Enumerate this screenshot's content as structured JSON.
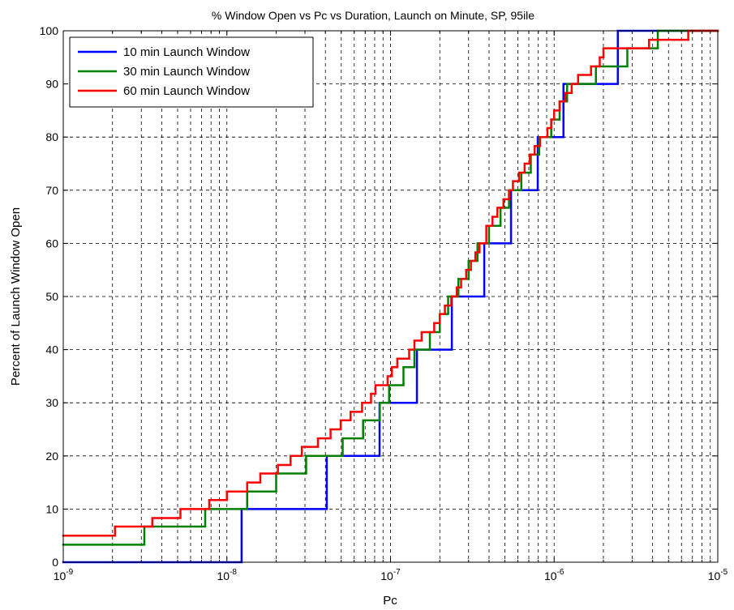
{
  "chart_data": {
    "type": "step",
    "title": "% Window Open vs Pc vs Duration, Launch on Minute, SP, 95ile",
    "xlabel": "Pc",
    "ylabel": "Percent of Launch Window Open",
    "xscale": "log",
    "xlim": [
      1e-09,
      1e-05
    ],
    "xticks": [
      {
        "value": 1e-09,
        "label": "10-9"
      },
      {
        "value": 1e-08,
        "label": "10-8"
      },
      {
        "value": 1e-07,
        "label": "10-7"
      },
      {
        "value": 1e-06,
        "label": "10-6"
      },
      {
        "value": 1e-05,
        "label": "10-5"
      }
    ],
    "ylim": [
      0,
      100
    ],
    "yticks": [
      0,
      10,
      20,
      30,
      40,
      50,
      60,
      70,
      80,
      90,
      100
    ],
    "grid": true,
    "minor_grid": true,
    "legend": "upper left",
    "series": [
      {
        "name": "10 min Launch Window",
        "color": "#0000ff",
        "x": [
          1e-09,
          1.23e-08,
          4.08e-08,
          8.57e-08,
          1.45e-07,
          2.37e-07,
          3.74e-07,
          5.45e-07,
          7.94e-07,
          1.14e-06,
          2.45e-06
        ],
        "values": [
          0,
          10,
          20,
          30,
          40,
          50,
          60,
          70,
          80,
          90,
          100
        ]
      },
      {
        "name": "30 min Launch Window",
        "color": "#008000",
        "x": [
          1e-09,
          3.13e-09,
          7.37e-09,
          1.33e-08,
          2e-08,
          3.05e-08,
          5.1e-08,
          6.8e-08,
          8.6e-08,
          9.8e-08,
          1.2e-07,
          1.4e-07,
          1.74e-07,
          2e-07,
          2.25e-07,
          2.6e-07,
          3e-07,
          3.4e-07,
          4e-07,
          4.7e-07,
          5.3e-07,
          6.3e-07,
          7.2e-07,
          8.1e-07,
          9.6e-07,
          1.08e-06,
          1.2e-06,
          1.8e-06,
          2.8e-06,
          4.3e-06
        ],
        "values": [
          3.3,
          6.7,
          10,
          13.3,
          16.7,
          20,
          23.3,
          26.7,
          30,
          33.3,
          36.7,
          40,
          43.3,
          46.7,
          50,
          53.3,
          56.7,
          60,
          63.3,
          66.7,
          70,
          73.3,
          76.7,
          80,
          83.3,
          86.7,
          90,
          93.3,
          96.7,
          100
        ]
      },
      {
        "name": "60 min Launch Window",
        "color": "#ff0000",
        "x": [
          1e-09,
          2.07e-09,
          3.5e-09,
          5.2e-09,
          7.8e-09,
          1e-08,
          1.33e-08,
          1.6e-08,
          2.05e-08,
          2.45e-08,
          2.87e-08,
          3.6e-08,
          4.3e-08,
          4.96e-08,
          5.7e-08,
          6.7e-08,
          7.6e-08,
          8.1e-08,
          9.6e-08,
          1.02e-07,
          1.1e-07,
          1.3e-07,
          1.4e-07,
          1.55e-07,
          1.85e-07,
          2e-07,
          2.15e-07,
          2.35e-07,
          2.54e-07,
          2.7e-07,
          2.9e-07,
          3.1e-07,
          3.3e-07,
          3.5e-07,
          3.85e-07,
          4.2e-07,
          4.5e-07,
          4.9e-07,
          5.3e-07,
          5.6e-07,
          6.1e-07,
          6.6e-07,
          7.1e-07,
          7.6e-07,
          8.2e-07,
          9.1e-07,
          9.6e-07,
          1e-06,
          1.08e-06,
          1.17e-06,
          1.28e-06,
          1.4e-06,
          1.68e-06,
          1.9e-06,
          2e-06,
          3.8e-06,
          6.6e-06
        ],
        "values": [
          5,
          6.7,
          8.3,
          10,
          11.7,
          13.3,
          15,
          16.7,
          18.3,
          20,
          21.7,
          23.3,
          25,
          26.7,
          28.3,
          30,
          31.7,
          33.3,
          35,
          36.7,
          38.3,
          40,
          41.7,
          43.3,
          45,
          46.7,
          48.3,
          50,
          51.7,
          53.3,
          55,
          56.7,
          58.3,
          60,
          63.3,
          65,
          66.7,
          68.3,
          70,
          71.7,
          73.3,
          75,
          76.7,
          78.3,
          80,
          81.7,
          83.3,
          85,
          86.7,
          88.3,
          90,
          91.7,
          93.3,
          95,
          96.7,
          98.3,
          100
        ]
      }
    ]
  }
}
